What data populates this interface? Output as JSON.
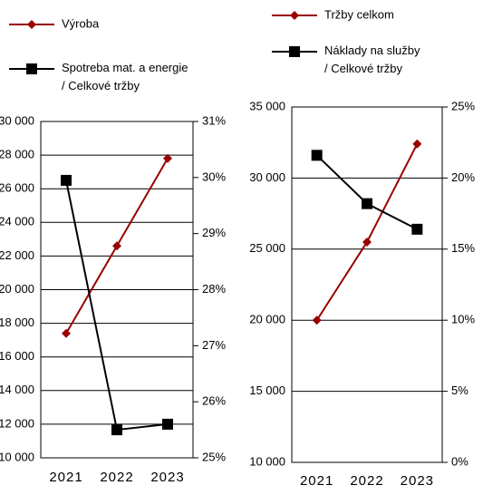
{
  "chart_data": [
    {
      "type": "line",
      "categories": [
        "2021",
        "2022",
        "2023"
      ],
      "series": [
        {
          "name": "Výroba",
          "color": "#990000",
          "marker": "diamond",
          "values": [
            17400,
            22600,
            27800
          ]
        },
        {
          "name": "Spotreba mat. a energie / Celkové tržby",
          "color": "#000000",
          "marker": "square",
          "axis": "y2",
          "values": [
            29.95,
            25.5,
            25.6
          ]
        }
      ],
      "ylim": [
        10000,
        30000
      ],
      "yticks": [
        {
          "value": 10000,
          "label": "10 000"
        },
        {
          "value": 12000,
          "label": "12 000"
        },
        {
          "value": 14000,
          "label": "14 000"
        },
        {
          "value": 16000,
          "label": "16 000"
        },
        {
          "value": 18000,
          "label": "18 000"
        },
        {
          "value": 20000,
          "label": "20 000"
        },
        {
          "value": 22000,
          "label": "22 000"
        },
        {
          "value": 24000,
          "label": "24 000"
        },
        {
          "value": 26000,
          "label": "26 000"
        },
        {
          "value": 28000,
          "label": "28 000"
        },
        {
          "value": 30000,
          "label": "30 000"
        }
      ],
      "y2lim": [
        25,
        31
      ],
      "y2ticks": [
        {
          "value": 25,
          "label": "25%"
        },
        {
          "value": 26,
          "label": "26%"
        },
        {
          "value": 27,
          "label": "27%"
        },
        {
          "value": 28,
          "label": "28%"
        },
        {
          "value": 29,
          "label": "29%"
        },
        {
          "value": 30,
          "label": "30%"
        },
        {
          "value": 31,
          "label": "31%"
        }
      ],
      "grid": true,
      "legend": "top"
    },
    {
      "type": "line",
      "categories": [
        "2021",
        "2022",
        "2023"
      ],
      "series": [
        {
          "name": "Tržby celkom",
          "color": "#990000",
          "marker": "diamond",
          "values": [
            20000,
            25500,
            32400
          ]
        },
        {
          "name": "Náklady na služby / Celkové tržby",
          "color": "#000000",
          "marker": "square",
          "axis": "y2",
          "values": [
            21.6,
            18.2,
            16.4
          ]
        }
      ],
      "ylim": [
        10000,
        35000
      ],
      "yticks": [
        {
          "value": 10000,
          "label": "10 000"
        },
        {
          "value": 15000,
          "label": "15 000"
        },
        {
          "value": 20000,
          "label": "20 000"
        },
        {
          "value": 25000,
          "label": "25 000"
        },
        {
          "value": 30000,
          "label": "30 000"
        },
        {
          "value": 35000,
          "label": "35 000"
        }
      ],
      "y2lim": [
        0,
        25
      ],
      "y2ticks": [
        {
          "value": 0,
          "label": "0%"
        },
        {
          "value": 5,
          "label": "5%"
        },
        {
          "value": 10,
          "label": "10%"
        },
        {
          "value": 15,
          "label": "15%"
        },
        {
          "value": 20,
          "label": "20%"
        },
        {
          "value": 25,
          "label": "25%"
        }
      ],
      "grid": true,
      "legend": "top"
    }
  ]
}
